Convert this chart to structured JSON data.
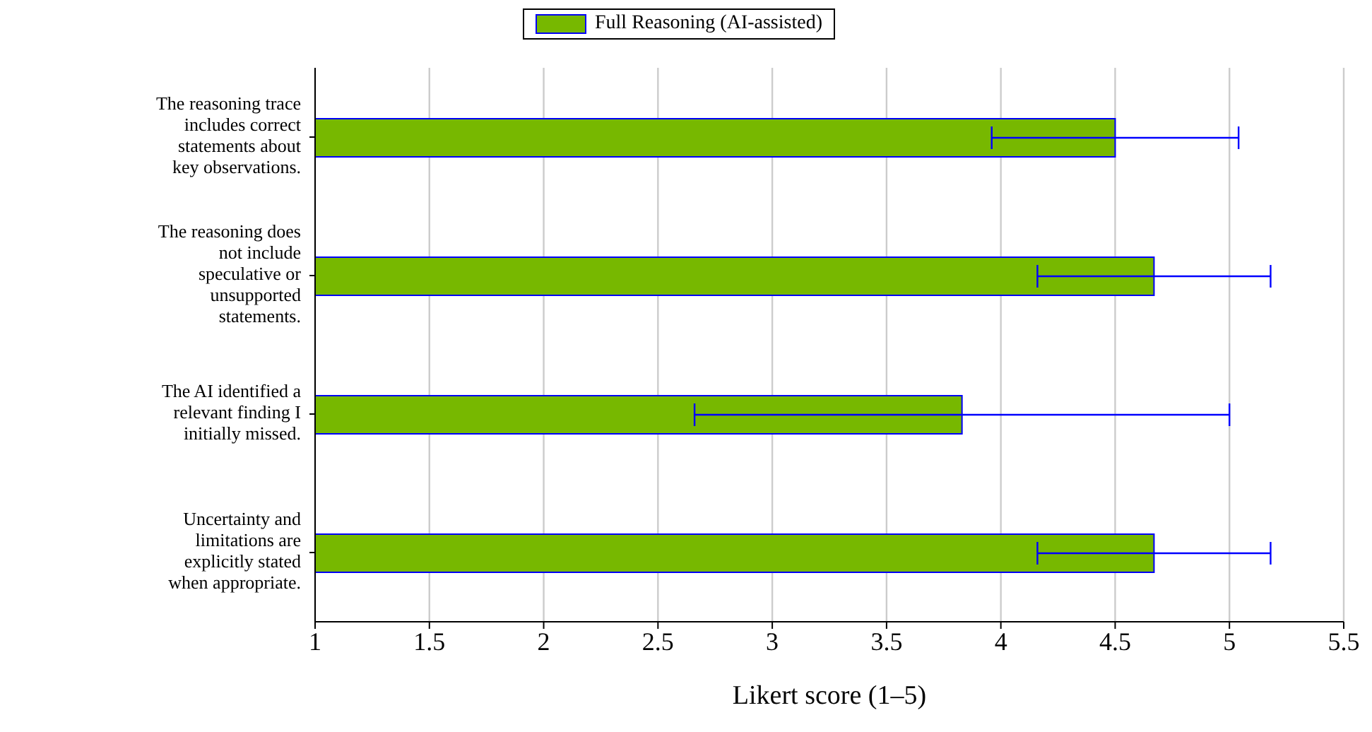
{
  "chart_data": {
    "type": "bar",
    "orientation": "horizontal",
    "categories": [
      "The reasoning trace includes correct statements about key observations.",
      "The reasoning does not include speculative or unsupported statements.",
      "The AI identified a relevant finding I initially missed.",
      "Uncertainty and limitations are explicitly stated when appropriate."
    ],
    "series": [
      {
        "name": "Full Reasoning (AI-assisted)",
        "color": "#77b800",
        "values": [
          4.5,
          4.67,
          3.83,
          4.67
        ],
        "errors": [
          0.54,
          0.51,
          1.17,
          0.51
        ]
      }
    ],
    "xlabel": "Likert score (1–5)",
    "xlim": [
      1,
      5.5
    ],
    "xticks": [
      1,
      1.5,
      2,
      2.5,
      3,
      3.5,
      4,
      4.5,
      5,
      5.5
    ],
    "grid": "x",
    "legend": "top"
  }
}
